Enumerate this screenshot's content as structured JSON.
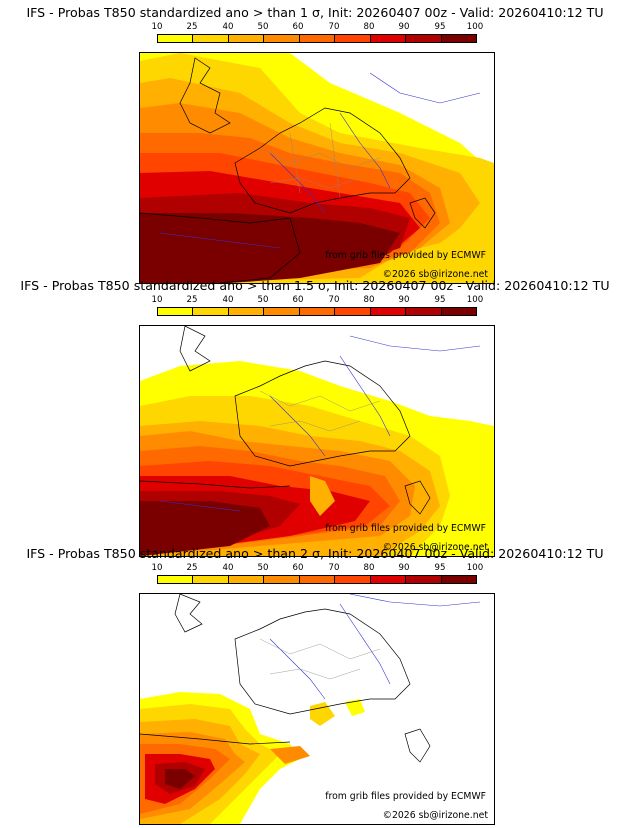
{
  "colorbar": {
    "ticks": [
      "10",
      "25",
      "40",
      "50",
      "60",
      "70",
      "80",
      "90",
      "95",
      "100"
    ],
    "colors": [
      "#ffff00",
      "#ffd700",
      "#ffb000",
      "#ff8c00",
      "#ff6a00",
      "#ff4500",
      "#e00000",
      "#b00000",
      "#7a0000"
    ]
  },
  "panels": [
    {
      "title": "IFS - Probas T850  standardized ano > than 1 σ, Init: 20260407 00z - Valid: 20260410:12 TU",
      "credit": "from grib files provided by ECMWF",
      "copyright": "©2026 sb@irizone.net"
    },
    {
      "title": "IFS - Probas T850  standardized ano > than 1.5 σ, Init: 20260407 00z - Valid: 20260410:12 TU",
      "credit": "from grib files provided by ECMWF",
      "copyright": "©2026 sb@irizone.net"
    },
    {
      "title": "IFS - Probas T850  standardized ano > than 2 σ, Init: 20260407 00z - Valid: 20260410:12 TU",
      "credit": "from grib files provided by ECMWF",
      "copyright": "©2026 sb@irizone.net"
    }
  ]
}
